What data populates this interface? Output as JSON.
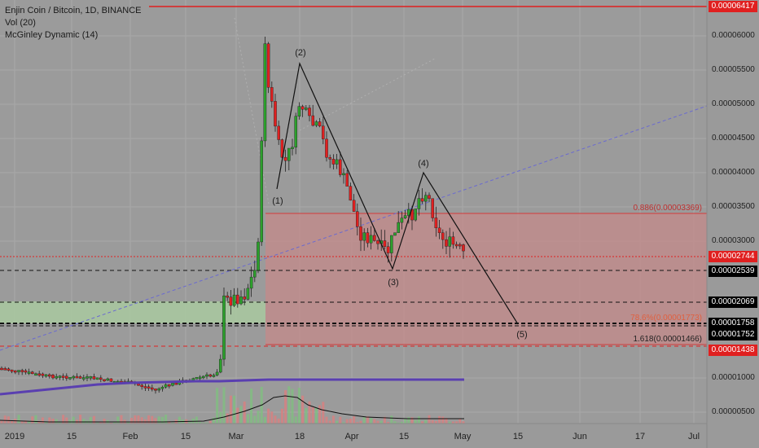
{
  "legend": {
    "symbol": "Enjin Coin / Bitcoin, 1D, BINANCE",
    "vol": "Vol (20)",
    "mcginley": "McGinley Dynamic (14)"
  },
  "price_axis": {
    "ticks": [
      "0.00006000",
      "0.00005500",
      "0.00005000",
      "0.00004500",
      "0.00004000",
      "0.00003500",
      "0.00003000",
      "0.00001000",
      "0.00000500"
    ],
    "tags": [
      {
        "label": "0.00006417",
        "color": "#e02020"
      },
      {
        "label": "0.00002744",
        "color": "#e02020"
      },
      {
        "label": "0.00002539",
        "color": "#000000"
      },
      {
        "label": "0.00002069",
        "color": "#000000"
      },
      {
        "label": "0.00001758",
        "color": "#000000"
      },
      {
        "label": "0.00001752",
        "color": "#000000"
      },
      {
        "label": "0.00001438",
        "color": "#e02020"
      }
    ]
  },
  "time_axis": {
    "ticks": [
      "2019",
      "15",
      "Feb",
      "15",
      "Mar",
      "18",
      "Apr",
      "15",
      "May",
      "15",
      "Jun",
      "17",
      "Jul"
    ]
  },
  "fib_labels": {
    "upper": "0.886(0.00003369)",
    "middle": "78.6%(0.00001773)",
    "lower": "1.618(0.00001466)"
  },
  "waves": [
    "(1)",
    "(2)",
    "(3)",
    "(4)",
    "(5)"
  ],
  "colors": {
    "up": "#2ca02c",
    "down": "#e02020",
    "mcginley": "#5a3fb0",
    "bullish_zone": "#a9c9a0",
    "bearish_zone": "#c98888"
  }
}
